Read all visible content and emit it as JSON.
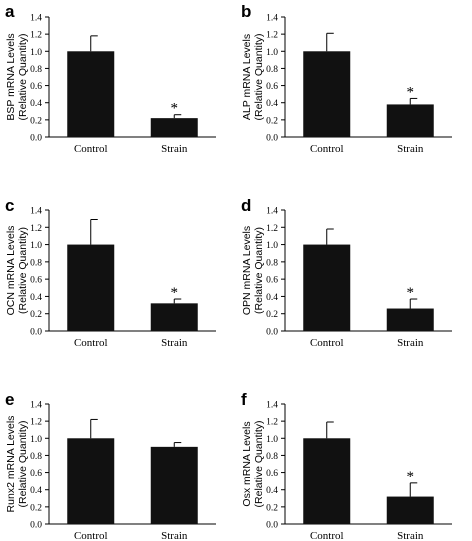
{
  "chart_data": [
    {
      "type": "bar",
      "panel": "a",
      "ylabel_lines": [
        "BSP mRNA Levels",
        "(Relative Quantity)"
      ],
      "categories": [
        "Control",
        "Strain"
      ],
      "values": [
        1.0,
        0.22
      ],
      "errors": [
        0.18,
        0.04
      ],
      "significance": [
        "",
        "*"
      ],
      "ylim": [
        0,
        1.4
      ],
      "yticks": [
        "0.0",
        "0.2",
        "0.4",
        "0.6",
        "0.8",
        "1.0",
        "1.2",
        "1.4"
      ],
      "bar_color": "#111111"
    },
    {
      "type": "bar",
      "panel": "b",
      "ylabel_lines": [
        "ALP mRNA Levels",
        "(Relative Quantity)"
      ],
      "categories": [
        "Control",
        "Strain"
      ],
      "values": [
        1.0,
        0.38
      ],
      "errors": [
        0.21,
        0.07
      ],
      "significance": [
        "",
        "*"
      ],
      "ylim": [
        0,
        1.4
      ],
      "yticks": [
        "0.0",
        "0.2",
        "0.4",
        "0.6",
        "0.8",
        "1.0",
        "1.2",
        "1.4"
      ],
      "bar_color": "#111111"
    },
    {
      "type": "bar",
      "panel": "c",
      "ylabel_lines": [
        "OCN mRNA Levels",
        "(Relative Quantity)"
      ],
      "categories": [
        "Control",
        "Strain"
      ],
      "values": [
        1.0,
        0.32
      ],
      "errors": [
        0.29,
        0.05
      ],
      "significance": [
        "",
        "*"
      ],
      "ylim": [
        0,
        1.4
      ],
      "yticks": [
        "0.0",
        "0.2",
        "0.4",
        "0.6",
        "0.8",
        "1.0",
        "1.2",
        "1.4"
      ],
      "bar_color": "#111111"
    },
    {
      "type": "bar",
      "panel": "d",
      "ylabel_lines": [
        "OPN mRNA Levels",
        "(Relative Quantity)"
      ],
      "categories": [
        "Control",
        "Strain"
      ],
      "values": [
        1.0,
        0.26
      ],
      "errors": [
        0.18,
        0.11
      ],
      "significance": [
        "",
        "*"
      ],
      "ylim": [
        0,
        1.4
      ],
      "yticks": [
        "0.0",
        "0.2",
        "0.4",
        "0.6",
        "0.8",
        "1.0",
        "1.2",
        "1.4"
      ],
      "bar_color": "#111111"
    },
    {
      "type": "bar",
      "panel": "e",
      "ylabel_lines": [
        "Runx2 mRNA Levels",
        "(Relative Quantity)"
      ],
      "categories": [
        "Control",
        "Strain"
      ],
      "values": [
        1.0,
        0.9
      ],
      "errors": [
        0.22,
        0.05
      ],
      "significance": [
        "",
        ""
      ],
      "ylim": [
        0,
        1.4
      ],
      "yticks": [
        "0.0",
        "0.2",
        "0.4",
        "0.6",
        "0.8",
        "1.0",
        "1.2",
        "1.4"
      ],
      "bar_color": "#111111"
    },
    {
      "type": "bar",
      "panel": "f",
      "ylabel_lines": [
        "Osx mRNA Levels",
        "(Relative Quantity)"
      ],
      "categories": [
        "Control",
        "Strain"
      ],
      "values": [
        1.0,
        0.32
      ],
      "errors": [
        0.19,
        0.16
      ],
      "significance": [
        "",
        "*"
      ],
      "ylim": [
        0,
        1.4
      ],
      "yticks": [
        "0.0",
        "0.2",
        "0.4",
        "0.6",
        "0.8",
        "1.0",
        "1.2",
        "1.4"
      ],
      "bar_color": "#111111"
    }
  ]
}
